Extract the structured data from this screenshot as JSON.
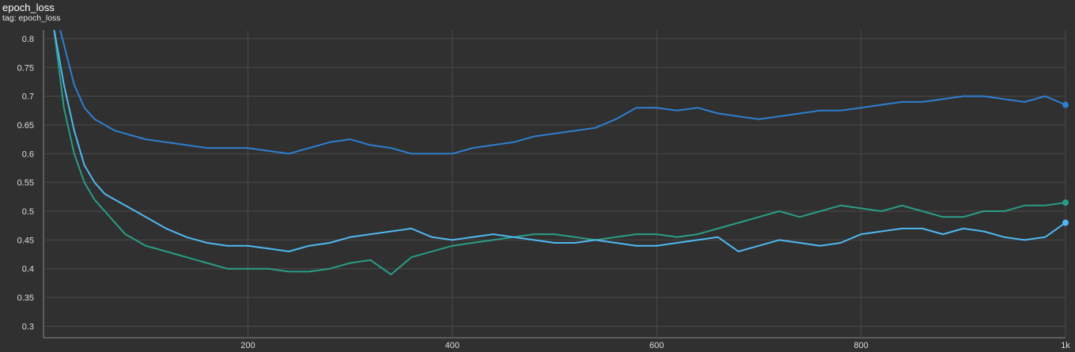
{
  "header": {
    "title": "epoch_loss",
    "tag_label": "tag: epoch_loss"
  },
  "chart_data": {
    "type": "line",
    "title": "epoch_loss",
    "subtitle": "tag: epoch_loss",
    "xlabel": "",
    "ylabel": "",
    "xlim": [
      0,
      1000
    ],
    "ylim": [
      0.28,
      0.815
    ],
    "x_ticks": [
      200,
      400,
      600,
      800,
      1000
    ],
    "x_tick_labels": [
      "200",
      "400",
      "600",
      "800",
      "1k"
    ],
    "y_ticks": [
      0.3,
      0.35,
      0.4,
      0.45,
      0.5,
      0.55,
      0.6,
      0.65,
      0.7,
      0.75,
      0.8
    ],
    "y_tick_labels": [
      "0.3",
      "0.35",
      "0.4",
      "0.45",
      "0.5",
      "0.55",
      "0.6",
      "0.65",
      "0.7",
      "0.75",
      "0.8"
    ],
    "grid": true,
    "colors": {
      "background": "#303030",
      "grid": "#4a4a4a",
      "axis": "#8a8a8a"
    },
    "series": [
      {
        "color": "#2d7fd0",
        "x": [
          10,
          20,
          30,
          40,
          50,
          60,
          70,
          80,
          90,
          100,
          120,
          140,
          160,
          180,
          200,
          220,
          240,
          260,
          280,
          300,
          320,
          340,
          360,
          380,
          400,
          420,
          440,
          460,
          480,
          500,
          520,
          540,
          560,
          580,
          600,
          620,
          640,
          660,
          680,
          700,
          720,
          740,
          760,
          780,
          800,
          820,
          840,
          860,
          880,
          900,
          920,
          940,
          960,
          980,
          1000
        ],
        "y": [
          0.86,
          0.79,
          0.72,
          0.68,
          0.66,
          0.65,
          0.64,
          0.635,
          0.63,
          0.625,
          0.62,
          0.615,
          0.61,
          0.61,
          0.61,
          0.605,
          0.6,
          0.61,
          0.62,
          0.625,
          0.615,
          0.61,
          0.6,
          0.6,
          0.6,
          0.61,
          0.615,
          0.62,
          0.63,
          0.635,
          0.64,
          0.645,
          0.66,
          0.68,
          0.68,
          0.675,
          0.68,
          0.67,
          0.665,
          0.66,
          0.665,
          0.67,
          0.675,
          0.675,
          0.68,
          0.685,
          0.69,
          0.69,
          0.695,
          0.7,
          0.7,
          0.695,
          0.69,
          0.7,
          0.685
        ]
      },
      {
        "color": "#2a9d85",
        "x": [
          10,
          20,
          30,
          40,
          50,
          60,
          70,
          80,
          90,
          100,
          120,
          140,
          160,
          180,
          200,
          220,
          240,
          260,
          280,
          300,
          320,
          340,
          360,
          380,
          400,
          420,
          440,
          460,
          480,
          500,
          520,
          540,
          560,
          580,
          600,
          620,
          640,
          660,
          680,
          700,
          720,
          740,
          760,
          780,
          800,
          820,
          840,
          860,
          880,
          900,
          920,
          940,
          960,
          980,
          1000
        ],
        "y": [
          0.82,
          0.68,
          0.6,
          0.55,
          0.52,
          0.5,
          0.48,
          0.46,
          0.45,
          0.44,
          0.43,
          0.42,
          0.41,
          0.4,
          0.4,
          0.4,
          0.395,
          0.395,
          0.4,
          0.41,
          0.415,
          0.39,
          0.42,
          0.43,
          0.44,
          0.445,
          0.45,
          0.455,
          0.46,
          0.46,
          0.455,
          0.45,
          0.455,
          0.46,
          0.46,
          0.455,
          0.46,
          0.47,
          0.48,
          0.49,
          0.5,
          0.49,
          0.5,
          0.51,
          0.505,
          0.5,
          0.51,
          0.5,
          0.49,
          0.49,
          0.5,
          0.5,
          0.51,
          0.51,
          0.515
        ]
      },
      {
        "color": "#4fb8f0",
        "x": [
          10,
          20,
          30,
          40,
          50,
          60,
          70,
          80,
          90,
          100,
          120,
          140,
          160,
          180,
          200,
          220,
          240,
          260,
          280,
          300,
          320,
          340,
          360,
          380,
          400,
          420,
          440,
          460,
          480,
          500,
          520,
          540,
          560,
          580,
          600,
          620,
          640,
          660,
          680,
          700,
          720,
          740,
          760,
          780,
          800,
          820,
          840,
          860,
          880,
          900,
          920,
          940,
          960,
          980,
          1000
        ],
        "y": [
          0.82,
          0.72,
          0.64,
          0.58,
          0.55,
          0.53,
          0.52,
          0.51,
          0.5,
          0.49,
          0.47,
          0.455,
          0.445,
          0.44,
          0.44,
          0.435,
          0.43,
          0.44,
          0.445,
          0.455,
          0.46,
          0.465,
          0.47,
          0.455,
          0.45,
          0.455,
          0.46,
          0.455,
          0.45,
          0.445,
          0.445,
          0.45,
          0.445,
          0.44,
          0.44,
          0.445,
          0.45,
          0.455,
          0.43,
          0.44,
          0.45,
          0.445,
          0.44,
          0.445,
          0.46,
          0.465,
          0.47,
          0.47,
          0.46,
          0.47,
          0.465,
          0.455,
          0.45,
          0.455,
          0.48
        ]
      }
    ]
  }
}
